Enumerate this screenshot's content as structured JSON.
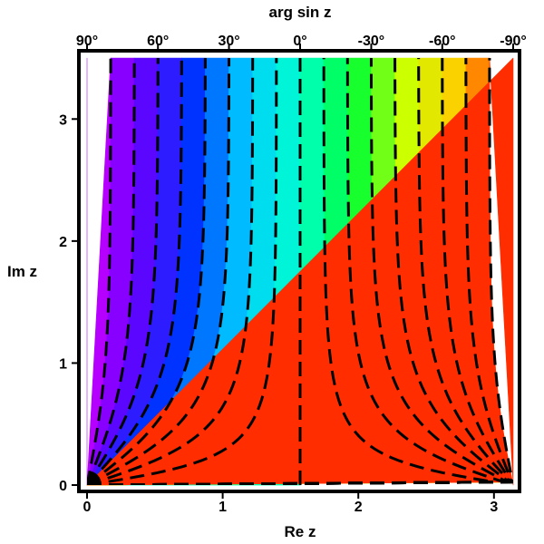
{
  "chart_data": {
    "type": "contour",
    "title": "arg sin z",
    "xlabel": "Re z",
    "ylabel": "Im z",
    "xlim": [
      0,
      3.14159
    ],
    "ylim": [
      0,
      3.5
    ],
    "x_ticks": [
      {
        "value": 0,
        "label": "0"
      },
      {
        "value": 1,
        "label": "1"
      },
      {
        "value": 2,
        "label": "2"
      },
      {
        "value": 3,
        "label": "3"
      }
    ],
    "y_ticks": [
      {
        "value": 0,
        "label": "0"
      },
      {
        "value": 1,
        "label": "1"
      },
      {
        "value": 2,
        "label": "2"
      },
      {
        "value": 3,
        "label": "3"
      }
    ],
    "top_ticks": [
      {
        "value": 90,
        "label": "90°"
      },
      {
        "value": 60,
        "label": "60°"
      },
      {
        "value": 30,
        "label": "30°"
      },
      {
        "value": 0,
        "label": "0°"
      },
      {
        "value": -30,
        "label": "-30°"
      },
      {
        "value": -60,
        "label": "-60°"
      },
      {
        "value": -90,
        "label": "-90°"
      }
    ],
    "contour_levels_deg": [
      80,
      70,
      60,
      50,
      40,
      30,
      20,
      10,
      0,
      -10,
      -20,
      -30,
      -40,
      -50,
      -60,
      -70,
      -80
    ],
    "color_scale": {
      "min_deg": -90,
      "max_deg": 90,
      "stops": [
        "#ff0000",
        "#ffcc00",
        "#ccff00",
        "#00ff33",
        "#00ffcc",
        "#00ccff",
        "#0033ff",
        "#6600ff",
        "#cc00ff"
      ]
    },
    "contour_line_color": "#000000",
    "grid": false
  }
}
